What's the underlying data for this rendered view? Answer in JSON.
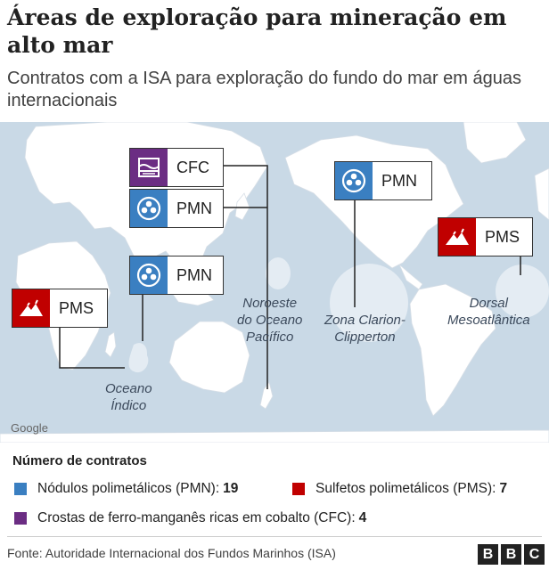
{
  "title": "Áreas de exploração para mineração em alto mar",
  "subtitle": "Contratos com a ISA para exploração do fundo do mar em águas internacionais",
  "colors": {
    "pmn": "#3a7fc1",
    "pms": "#c00000",
    "cfc": "#6b2d83",
    "land": "#ffffff",
    "sea": "#c9d9e6",
    "zone": "#e4ecf3"
  },
  "icons": {
    "pmn": "polymetallic-nodule-icon",
    "pms": "sulphide-mountain-icon",
    "cfc": "cobalt-crust-layers-icon"
  },
  "map": {
    "watermark": "Google",
    "labels": [
      {
        "code": "CFC",
        "type": "cfc"
      },
      {
        "code": "PMN",
        "type": "pmn"
      },
      {
        "code": "PMN",
        "type": "pmn"
      },
      {
        "code": "PMS",
        "type": "pms"
      },
      {
        "code": "PMN",
        "type": "pmn"
      },
      {
        "code": "PMS",
        "type": "pms"
      }
    ],
    "areas": {
      "pacific_nw": "Noroeste\ndo Oceano\nPacífico",
      "clarion": "Zona Clarion-\nClipperton",
      "atlantic": "Dorsal\nMesoatlântica",
      "indian": "Oceano\nÍndico"
    }
  },
  "legend": {
    "title": "Número de contratos",
    "items": [
      {
        "label": "Nódulos polimetálicos (PMN):",
        "count": "19",
        "color": "#3a7fc1"
      },
      {
        "label": "Sulfetos polimetálicos (PMS):",
        "count": "7",
        "color": "#c00000"
      },
      {
        "label": "Crostas de ferro-manganês ricas em cobalto (CFC):",
        "count": "4",
        "color": "#6b2d83"
      }
    ]
  },
  "footer": {
    "source": "Fonte: Autoridade Internacional dos Fundos Marinhos (ISA)",
    "logo": [
      "B",
      "B",
      "C"
    ]
  }
}
